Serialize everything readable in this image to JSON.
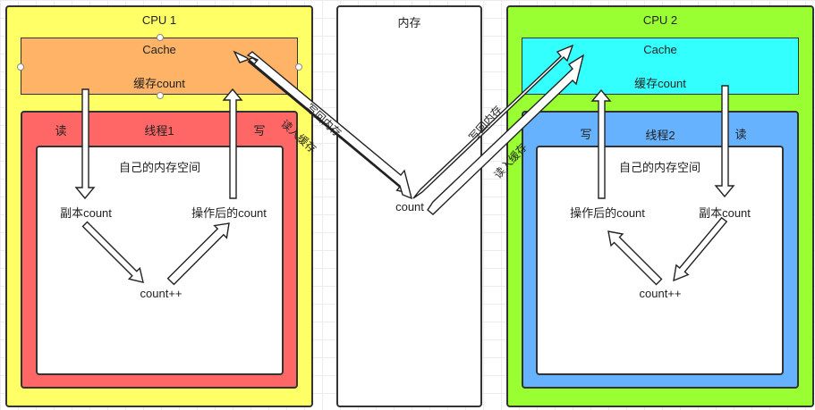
{
  "colors": {
    "cpu1_fill": "#ffff66",
    "cpu1_cache_fill": "#ffb366",
    "thread1_fill": "#ff6666",
    "cpu2_fill": "#99ff33",
    "cpu2_cache_fill": "#33ffff",
    "thread2_fill": "#66b2ff",
    "memory_fill": "#ffffff",
    "border": "#333333"
  },
  "cpu1": {
    "title": "CPU 1",
    "cache_title": "Cache",
    "cache_content": "缓存count",
    "thread": {
      "title": "线程1",
      "read_label": "读",
      "write_label": "写",
      "space_title": "自己的内存空间",
      "copy_label": "副本count",
      "result_label": "操作后的count",
      "op_label": "count++"
    }
  },
  "memory": {
    "title": "内存",
    "count_label": "count",
    "write_back_label": "写回内存",
    "read_into_cache_label": "读入缓存"
  },
  "cpu2": {
    "title": "CPU 2",
    "cache_title": "Cache",
    "cache_content": "缓存count",
    "thread": {
      "title": "线程2",
      "read_label": "读",
      "write_label": "写",
      "space_title": "自己的内存空间",
      "copy_label": "副本count",
      "result_label": "操作后的count",
      "op_label": "count++"
    }
  }
}
